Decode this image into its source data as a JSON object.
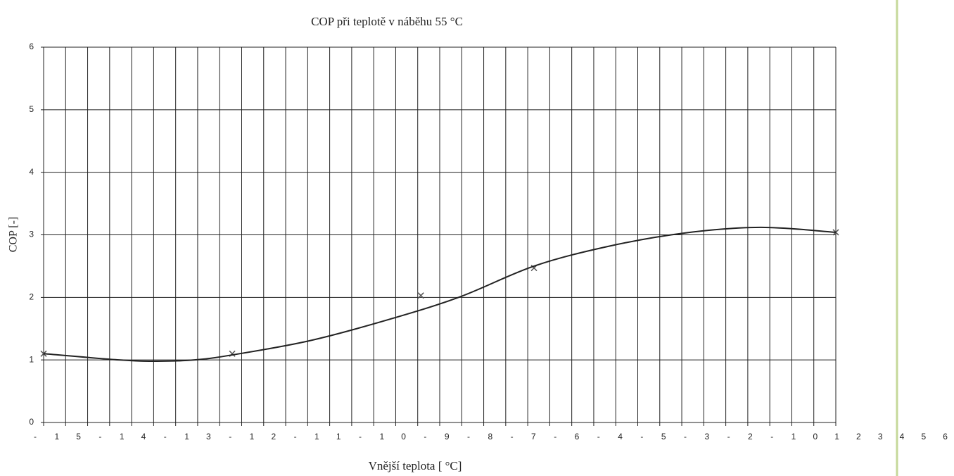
{
  "chart_data": {
    "type": "line",
    "title": "COP při teplotě v náběhu 55 °C",
    "x_label": "Vnější teplota [ °C]",
    "y_label": "COP [-]",
    "xlim": [
      -15,
      6
    ],
    "ylim": [
      0,
      6
    ],
    "yticks": [
      0,
      1,
      2,
      3,
      4,
      5,
      6
    ],
    "grid": true,
    "xtick_labels": [
      "-",
      "1",
      "5",
      "-",
      "1",
      "4",
      "-",
      "1",
      "3",
      "-",
      "1",
      "2",
      "-",
      "1",
      "1",
      "-",
      "1",
      "0",
      "-",
      "9",
      "-",
      "8",
      "-",
      "7",
      "-",
      "6",
      "-",
      "4",
      "-",
      "5",
      "-",
      "3",
      "-",
      "2",
      "-",
      "1",
      "0",
      "1",
      "2",
      "3",
      "4",
      "5",
      "6"
    ],
    "series": [
      {
        "color": "#555555",
        "marker": "x",
        "x": [
          -15,
          -10,
          -5,
          -2,
          6
        ],
        "values": [
          1.1,
          1.1,
          2.03,
          2.47,
          3.04
        ]
      },
      {
        "color": "#222222",
        "x": [
          -15,
          -13,
          -12,
          -11,
          -10,
          -8,
          -6,
          -4,
          -2,
          0,
          2,
          4,
          6
        ],
        "values": [
          1.1,
          1.0,
          0.98,
          1.0,
          1.08,
          1.3,
          1.62,
          2.0,
          2.5,
          2.82,
          3.03,
          3.12,
          3.04
        ]
      }
    ]
  }
}
